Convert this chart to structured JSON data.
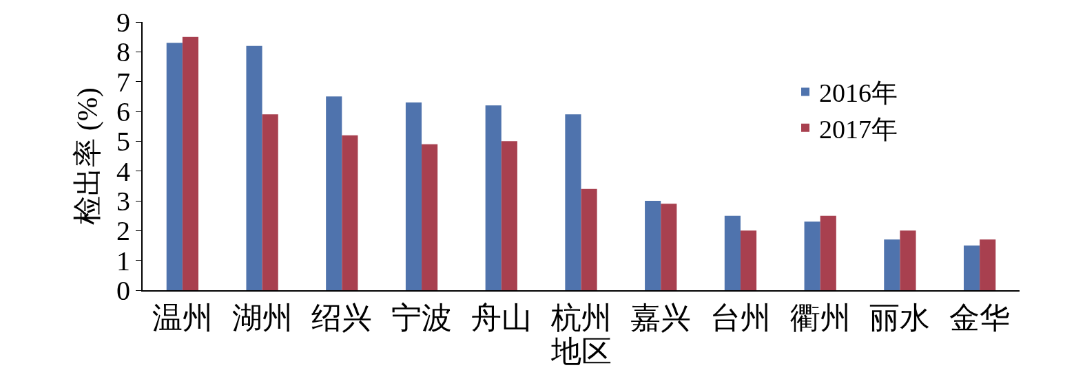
{
  "chart_data": {
    "type": "bar",
    "xlabel": "地区",
    "ylabel": "检出率 (%)",
    "categories": [
      "温州",
      "湖州",
      "绍兴",
      "宁波",
      "舟山",
      "杭州",
      "嘉兴",
      "台州",
      "衢州",
      "丽水",
      "金华"
    ],
    "series": [
      {
        "name": "2016年",
        "color": "#4f73ad",
        "values": [
          8.3,
          8.2,
          6.5,
          6.3,
          6.2,
          5.9,
          3.0,
          2.5,
          2.3,
          1.7,
          1.5
        ]
      },
      {
        "name": "2017年",
        "color": "#a8404f",
        "values": [
          8.5,
          5.9,
          5.2,
          4.9,
          5.0,
          3.4,
          2.9,
          2.0,
          2.5,
          2.0,
          1.7
        ]
      }
    ],
    "ylim": [
      0,
      9
    ],
    "yticks": [
      0,
      1,
      2,
      3,
      4,
      5,
      6,
      7,
      8,
      9
    ],
    "grid": false,
    "legend": "top right"
  }
}
